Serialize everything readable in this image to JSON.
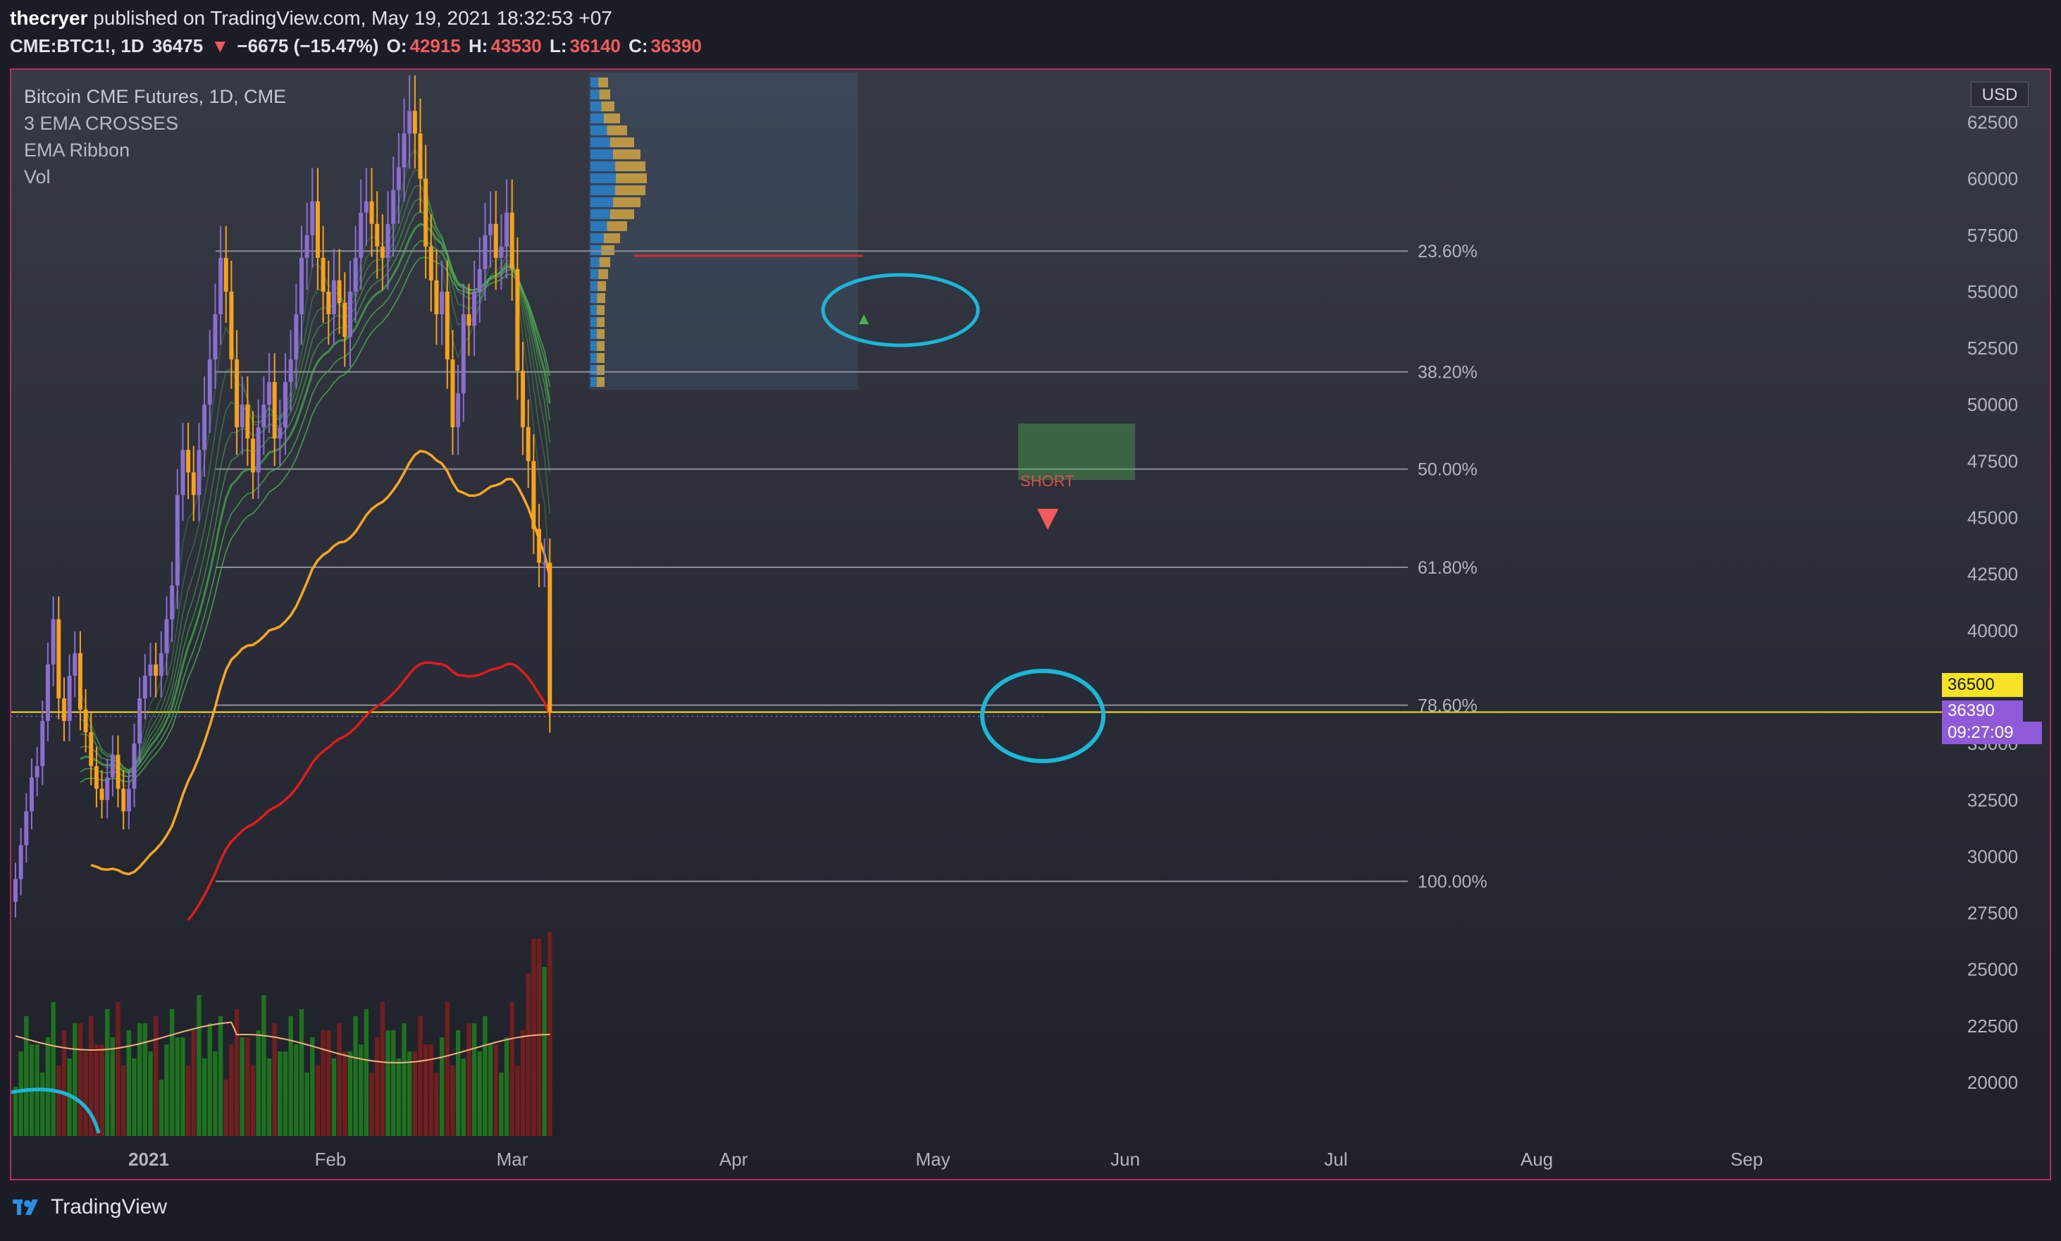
{
  "header": {
    "author": "thecryer",
    "published_text": "published on TradingView.com, May 19, 2021 18:32:53 +07",
    "symbol": "CME:BTC1!, 1D",
    "last": "36475",
    "change": "−6675 (−15.47%)",
    "o_label": "O:",
    "o_value": "42915",
    "h_label": "H:",
    "h_value": "43530",
    "l_label": "L:",
    "l_value": "36140",
    "c_label": "C:",
    "c_value": "36390"
  },
  "legend": {
    "title": "Bitcoin CME Futures, 1D, CME",
    "ind1": "3 EMA CROSSES",
    "ind2": "EMA Ribbon",
    "ind3": "Vol"
  },
  "axis": {
    "currency": "USD",
    "price_tag": "36500",
    "last_price_tag": "36390",
    "countdown": "09:27:09"
  },
  "annotations": {
    "short_label": "SHORT"
  },
  "footer": {
    "brand": "TradingView"
  },
  "colors": {
    "up": "#8a6fd1",
    "down": "#f7a21b",
    "ema_mid": "#f5a623",
    "ema_long": "#e01b1b",
    "ribbon": "#4caf50",
    "circle": "#1eb6d6",
    "volume_up": "#1e7a1e",
    "volume_down": "#7a1e1e"
  },
  "chart_data": {
    "type": "candlestick",
    "price_range": [
      18000,
      64500
    ],
    "y_ticks": [
      62500,
      60000,
      57500,
      55000,
      52500,
      50000,
      47500,
      45000,
      42500,
      40000,
      35000,
      32500,
      30000,
      27500,
      25000,
      22500,
      20000
    ],
    "x_labels": [
      "2021",
      "Feb",
      "Mar",
      "Apr",
      "May",
      "Jun",
      "Jul",
      "Aug",
      "Sep"
    ],
    "fib_levels": [
      {
        "label": "23.60%",
        "price": 56800
      },
      {
        "label": "38.20%",
        "price": 51450
      },
      {
        "label": "50.00%",
        "price": 47150
      },
      {
        "label": "61.80%",
        "price": 42800
      },
      {
        "label": "78.60%",
        "price": 36700
      },
      {
        "label": "100.00%",
        "price": 28900
      }
    ],
    "closes": [
      29000,
      30500,
      32000,
      33500,
      34000,
      36000,
      38500,
      40500,
      37000,
      36000,
      38000,
      39000,
      36500,
      35500,
      34000,
      33000,
      32500,
      33500,
      34500,
      33000,
      32000,
      33000,
      35000,
      37000,
      38000,
      38500,
      38000,
      39000,
      40500,
      42000,
      46000,
      48000,
      47000,
      46000,
      48000,
      50000,
      52000,
      54000,
      56500,
      55000,
      52000,
      49000,
      50000,
      48500,
      47000,
      49000,
      50000,
      51000,
      48500,
      49000,
      51000,
      52000,
      54000,
      56500,
      57500,
      59000,
      56500,
      55000,
      54000,
      55500,
      54500,
      53000,
      55000,
      56500,
      58500,
      59000,
      58000,
      57000,
      56500,
      58000,
      59500,
      60500,
      62000,
      63000,
      62000,
      60000,
      57000,
      55500,
      54000,
      55000,
      52000,
      49000,
      50500,
      54000,
      53500,
      55000,
      56000,
      57500,
      58000,
      56500,
      57000,
      58500,
      56000,
      51500,
      49000,
      47500,
      44500,
      43000,
      43000,
      36390
    ],
    "series": [
      {
        "name": "3 EMA CROSSES",
        "color": "#f5a623"
      },
      {
        "name": "EMA Ribbon",
        "color": "#4caf50"
      },
      {
        "name": "Vol",
        "color": "#1e7a1e"
      }
    ]
  }
}
